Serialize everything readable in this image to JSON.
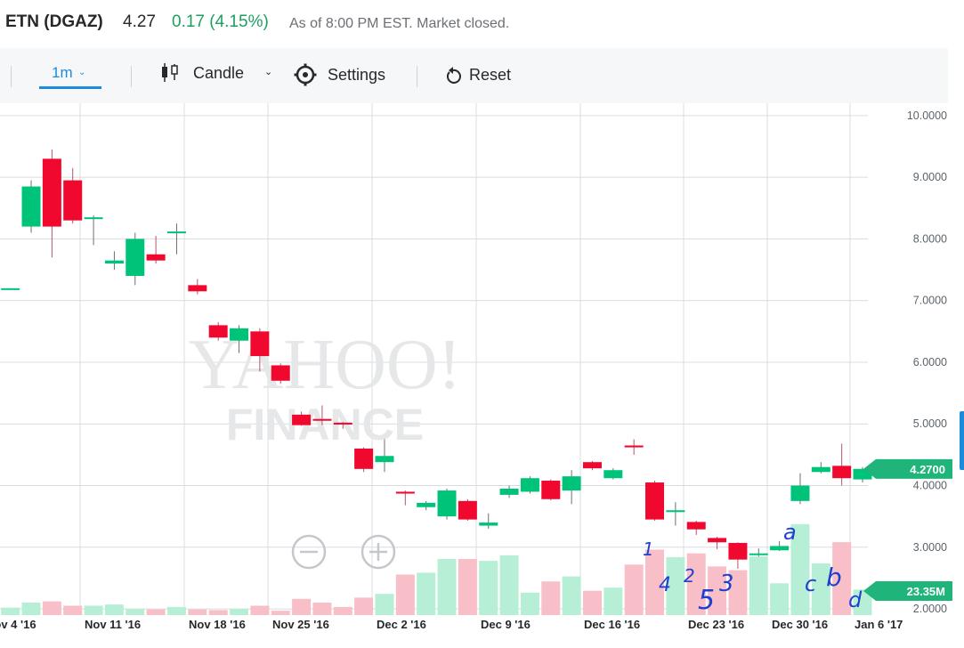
{
  "quote": {
    "ticker": "ETN (DGAZ)",
    "price": "4.27",
    "change": "0.17 (4.15%)",
    "status": "As of 8:00 PM EST. Market closed."
  },
  "toolbar": {
    "range_label": "1m",
    "chart_type_label": "Candle",
    "settings_label": "Settings",
    "reset_label": "Reset"
  },
  "watermark": {
    "line1": "YAHOO!",
    "line2": "FINANCE"
  },
  "colors": {
    "up": "#00c37a",
    "down": "#f0082e",
    "vol_up": "#b7efd6",
    "vol_down": "#f9bfc8",
    "grid": "#d9dcdf",
    "tag": "#1fb47a",
    "annotation": "#1f3fcf"
  },
  "chart_data": {
    "type": "candlestick",
    "ylim": [
      1.9,
      10.2
    ],
    "y_ticks": [
      "10.0000",
      "9.0000",
      "8.0000",
      "7.0000",
      "6.0000",
      "5.0000",
      "4.0000",
      "3.0000",
      "2.0000"
    ],
    "x_ticks": [
      "Nov 4 '16",
      "Nov 11 '16",
      "Nov 18 '16",
      "Nov 25 '16",
      "Dec 2 '16",
      "Dec 9 '16",
      "Dec 16 '16",
      "Dec 23 '16",
      "Dec 30 '16",
      "Jan 6 '17"
    ],
    "last_price_label": "4.2700",
    "volume_label": "23.35M",
    "candles": [
      {
        "open": 7.2,
        "close": 7.2,
        "high": 7.2,
        "low": 7.2,
        "volume": 0.12
      },
      {
        "open": 8.2,
        "close": 8.85,
        "high": 8.95,
        "low": 8.1,
        "volume": 0.2
      },
      {
        "open": 9.3,
        "close": 8.2,
        "high": 9.45,
        "low": 7.7,
        "volume": 0.22
      },
      {
        "open": 8.95,
        "close": 8.3,
        "high": 9.15,
        "low": 8.25,
        "volume": 0.15
      },
      {
        "open": 8.33,
        "close": 8.35,
        "high": 8.38,
        "low": 7.9,
        "volume": 0.15
      },
      {
        "open": 7.6,
        "close": 7.65,
        "high": 7.8,
        "low": 7.5,
        "volume": 0.17
      },
      {
        "open": 7.4,
        "close": 8.0,
        "high": 8.1,
        "low": 7.25,
        "volume": 0.1
      },
      {
        "open": 7.75,
        "close": 7.65,
        "high": 8.05,
        "low": 7.6,
        "volume": 0.09
      },
      {
        "open": 8.1,
        "close": 8.12,
        "high": 8.25,
        "low": 7.75,
        "volume": 0.13
      },
      {
        "open": 7.25,
        "close": 7.15,
        "high": 7.35,
        "low": 7.1,
        "volume": 0.09
      },
      {
        "open": 6.6,
        "close": 6.4,
        "high": 6.65,
        "low": 6.35,
        "volume": 0.08
      },
      {
        "open": 6.35,
        "close": 6.55,
        "high": 6.6,
        "low": 6.15,
        "volume": 0.1
      },
      {
        "open": 6.5,
        "close": 6.1,
        "high": 6.55,
        "low": 5.85,
        "volume": 0.15
      },
      {
        "open": 5.95,
        "close": 5.7,
        "high": 5.98,
        "low": 5.65,
        "volume": 0.07
      },
      {
        "open": 5.15,
        "close": 4.98,
        "high": 5.2,
        "low": 4.97,
        "volume": 0.26
      },
      {
        "open": 5.08,
        "close": 5.06,
        "high": 5.3,
        "low": 4.98,
        "volume": 0.2
      },
      {
        "open": 5.02,
        "close": 4.99,
        "high": 5.03,
        "low": 4.92,
        "volume": 0.13
      },
      {
        "open": 4.6,
        "close": 4.27,
        "high": 4.62,
        "low": 4.22,
        "volume": 0.28
      },
      {
        "open": 4.38,
        "close": 4.48,
        "high": 4.75,
        "low": 4.22,
        "volume": 0.34
      },
      {
        "open": 3.9,
        "close": 3.87,
        "high": 3.92,
        "low": 3.68,
        "volume": 0.65
      },
      {
        "open": 3.65,
        "close": 3.72,
        "high": 3.75,
        "low": 3.6,
        "volume": 0.68
      },
      {
        "open": 3.5,
        "close": 3.92,
        "high": 3.95,
        "low": 3.45,
        "volume": 0.9
      },
      {
        "open": 3.75,
        "close": 3.45,
        "high": 3.78,
        "low": 3.43,
        "volume": 0.9
      },
      {
        "open": 3.35,
        "close": 3.4,
        "high": 3.55,
        "low": 3.3,
        "volume": 0.87
      },
      {
        "open": 3.85,
        "close": 3.95,
        "high": 4.0,
        "low": 3.8,
        "volume": 0.96
      },
      {
        "open": 3.9,
        "close": 4.12,
        "high": 4.15,
        "low": 3.87,
        "volume": 0.36
      },
      {
        "open": 4.08,
        "close": 3.78,
        "high": 4.1,
        "low": 3.76,
        "volume": 0.54
      },
      {
        "open": 3.92,
        "close": 4.15,
        "high": 4.25,
        "low": 3.7,
        "volume": 0.62
      },
      {
        "open": 4.38,
        "close": 4.28,
        "high": 4.4,
        "low": 4.25,
        "volume": 0.39
      },
      {
        "open": 4.12,
        "close": 4.25,
        "high": 4.28,
        "low": 4.1,
        "volume": 0.44
      },
      {
        "open": 4.65,
        "close": 4.62,
        "high": 4.75,
        "low": 4.5,
        "volume": 0.81
      },
      {
        "open": 4.05,
        "close": 3.45,
        "high": 4.08,
        "low": 3.43,
        "volume": 1.05
      },
      {
        "open": 3.57,
        "close": 3.6,
        "high": 3.73,
        "low": 3.35,
        "volume": 0.93
      },
      {
        "open": 3.41,
        "close": 3.29,
        "high": 3.43,
        "low": 3.2,
        "volume": 0.99
      },
      {
        "open": 3.15,
        "close": 3.08,
        "high": 3.17,
        "low": 2.97,
        "volume": 0.78
      },
      {
        "open": 3.07,
        "close": 2.8,
        "high": 3.08,
        "low": 2.65,
        "volume": 0.72
      },
      {
        "open": 2.88,
        "close": 2.9,
        "high": 2.98,
        "low": 2.85,
        "volume": 0.94
      },
      {
        "open": 2.95,
        "close": 3.02,
        "high": 3.1,
        "low": 2.94,
        "volume": 0.51
      },
      {
        "open": 3.75,
        "close": 4.0,
        "high": 4.2,
        "low": 3.7,
        "volume": 1.46
      },
      {
        "open": 4.22,
        "close": 4.3,
        "high": 4.38,
        "low": 4.2,
        "volume": 0.83
      },
      {
        "open": 4.32,
        "close": 4.12,
        "high": 4.68,
        "low": 4.0,
        "volume": 1.17
      },
      {
        "open": 4.1,
        "close": 4.27,
        "high": 4.3,
        "low": 4.05,
        "volume": 0.41
      }
    ]
  },
  "handwritten_annotations": [
    "1",
    "4",
    "2",
    "5",
    "3",
    "a",
    "c",
    "b",
    "d"
  ]
}
